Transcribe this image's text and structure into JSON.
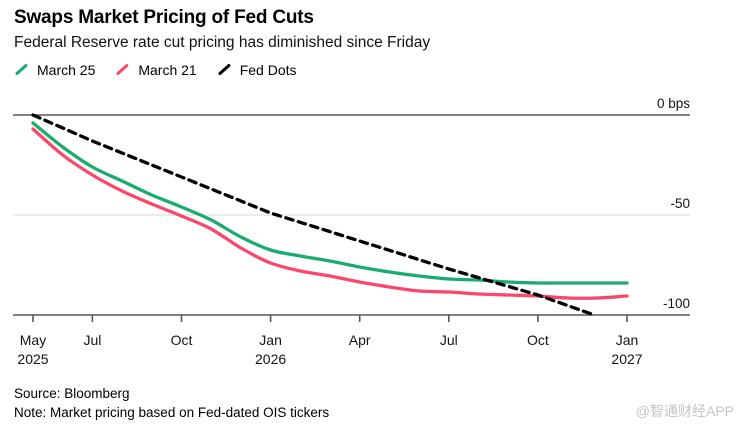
{
  "header": {
    "title": "Swaps Market Pricing of Fed Cuts",
    "subtitle": "Federal Reserve rate cut pricing has diminished since Friday"
  },
  "legend": {
    "items": [
      {
        "label": "March 25",
        "color": "#1cab6f"
      },
      {
        "label": "March 21",
        "color": "#f9486b"
      },
      {
        "label": "Fed Dots",
        "color": "#000000"
      }
    ]
  },
  "chart_data": {
    "type": "line",
    "title": "Swaps Market Pricing of Fed Cuts",
    "subtitle": "Federal Reserve rate cut pricing has diminished since Friday",
    "unit": "bps",
    "ylim": [
      -100,
      0
    ],
    "grid": "horizontal",
    "legend_position": "top-left",
    "x": [
      "May 2025",
      "Jun 2025",
      "Jul 2025",
      "Aug 2025",
      "Sep 2025",
      "Oct 2025",
      "Nov 2025",
      "Dec 2025",
      "Jan 2026",
      "Feb 2026",
      "Mar 2026",
      "Apr 2026",
      "May 2026",
      "Jun 2026",
      "Jul 2026",
      "Aug 2026",
      "Sep 2026",
      "Oct 2026",
      "Nov 2026",
      "Dec 2026",
      "Jan 2027"
    ],
    "x_ticks": [
      {
        "month": "May",
        "year": "2025",
        "index": 0
      },
      {
        "month": "Jul",
        "year": "",
        "index": 2
      },
      {
        "month": "Oct",
        "year": "",
        "index": 5
      },
      {
        "month": "Jan",
        "year": "2026",
        "index": 8
      },
      {
        "month": "Apr",
        "year": "",
        "index": 11
      },
      {
        "month": "Jul",
        "year": "",
        "index": 14
      },
      {
        "month": "Oct",
        "year": "",
        "index": 17
      },
      {
        "month": "Jan",
        "year": "2027",
        "index": 20
      }
    ],
    "y_ticks": [
      {
        "label": "0 bps",
        "value": 0
      },
      {
        "label": "-50",
        "value": -50
      },
      {
        "label": "-100",
        "value": -100
      }
    ],
    "series": [
      {
        "name": "March 25",
        "color": "#1cab6f",
        "line_style": "solid",
        "values": [
          -4,
          -16,
          -26,
          -33,
          -40,
          -46,
          -52.5,
          -61,
          -67.5,
          -70.5,
          -73,
          -76,
          -78.5,
          -80.5,
          -82,
          -82.5,
          -83.5,
          -84,
          -84,
          -84,
          -84
        ]
      },
      {
        "name": "March 21",
        "color": "#f9486b",
        "line_style": "solid",
        "values": [
          -7,
          -20,
          -30,
          -38,
          -44.5,
          -50.5,
          -57,
          -66.5,
          -74,
          -78,
          -80.5,
          -83.5,
          -86,
          -88,
          -88.5,
          -89.5,
          -90,
          -90.5,
          -91.5,
          -91.5,
          -90.5
        ]
      },
      {
        "name": "Fed Dots",
        "color": "#000000",
        "line_style": "dashed",
        "x_index": [
          0,
          2,
          5,
          8,
          11,
          14,
          17,
          18.9
        ],
        "values": [
          0,
          -13,
          -31,
          -49,
          -63,
          -77,
          -90,
          -100
        ]
      }
    ]
  },
  "footer": {
    "source": "Source: Bloomberg",
    "note": "Note: Market pricing based on Fed-dated OIS tickers"
  },
  "watermark": "@智通财经APP"
}
